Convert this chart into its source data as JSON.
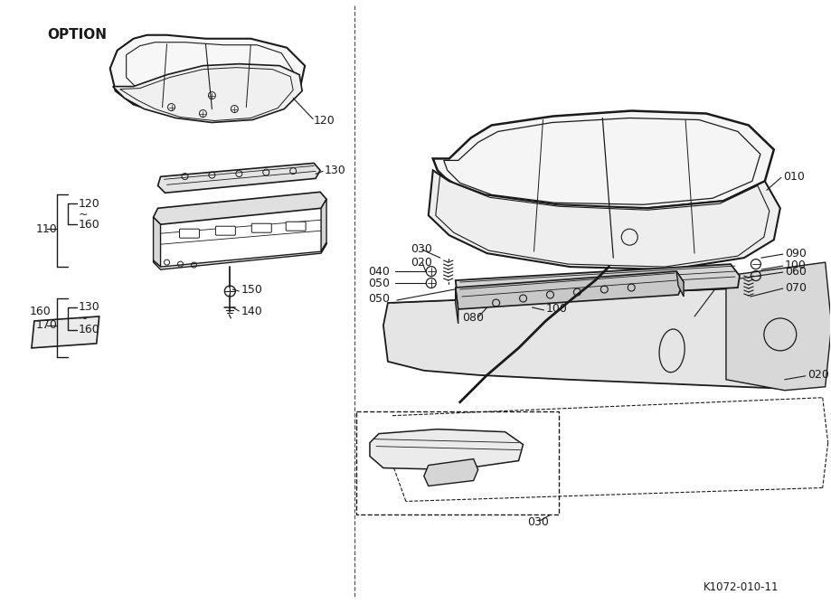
{
  "bg_color": "#ffffff",
  "line_color": "#1a1a1a",
  "footer_code": "K1072-010-11",
  "option_label": "OPTION",
  "fig_w": 9.2,
  "fig_h": 6.68,
  "dpi": 100
}
